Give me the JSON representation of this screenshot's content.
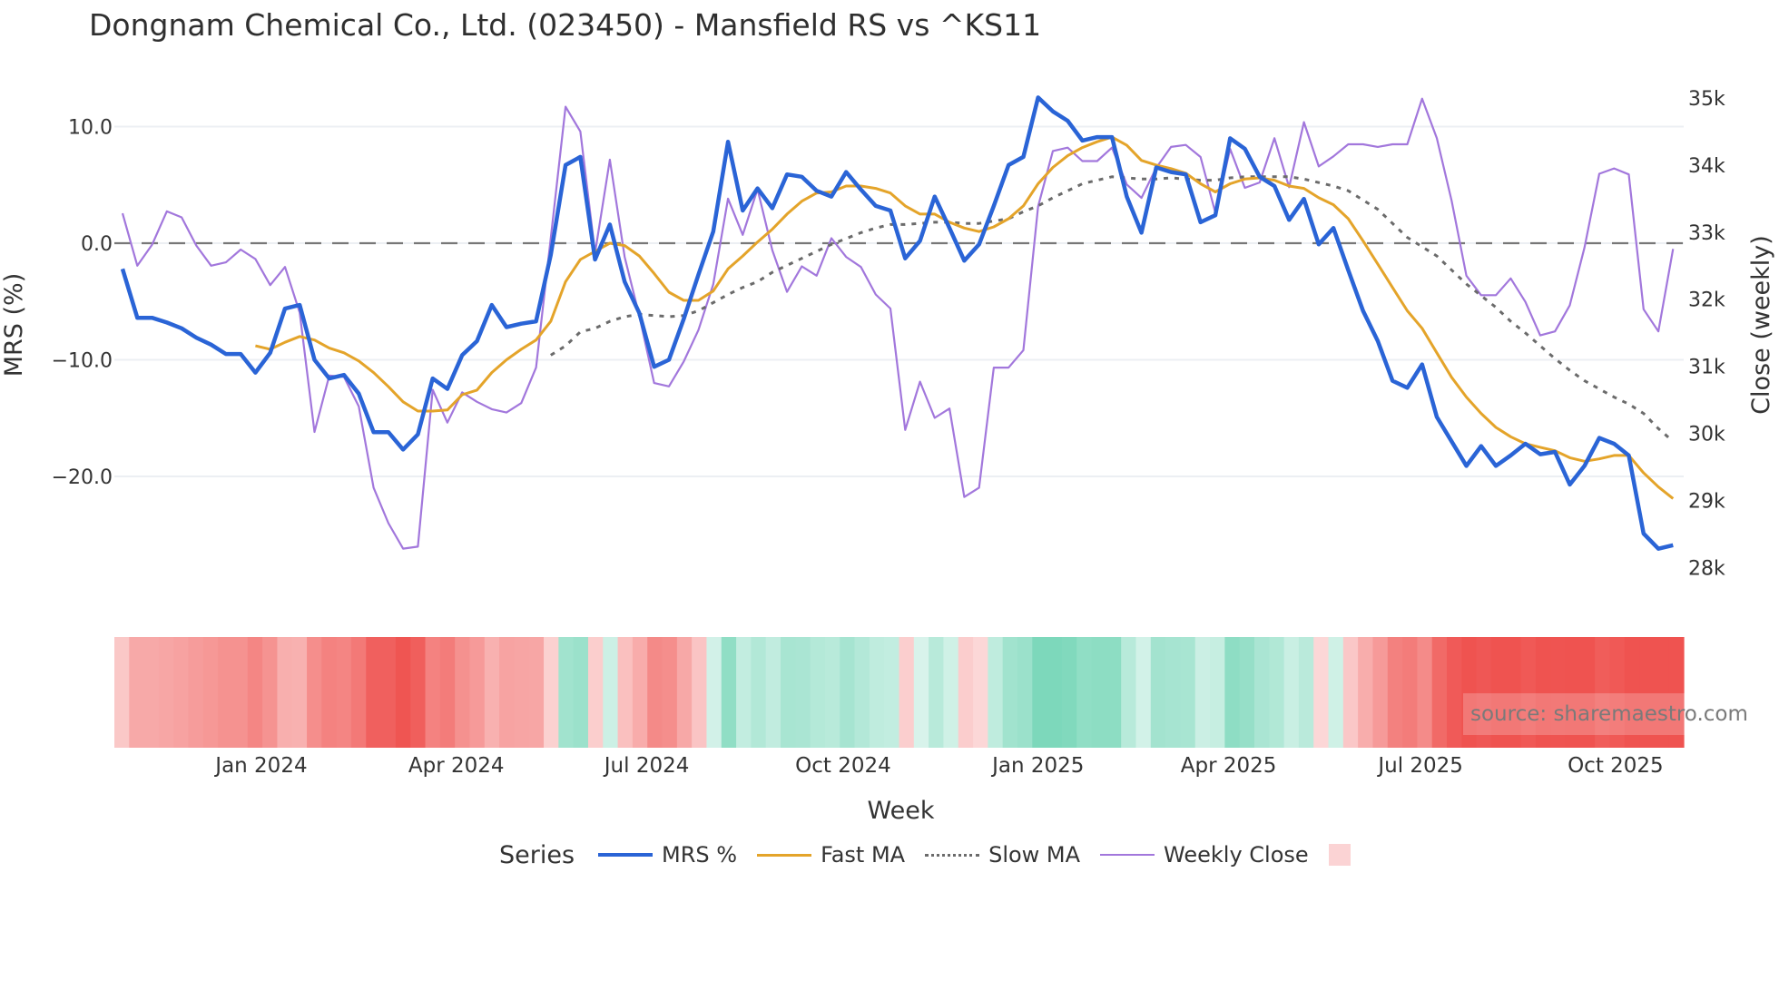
{
  "title": "Dongnam Chemical Co., Ltd. (023450) - Mansfield RS vs ^KS11",
  "source_note": "source: sharemaestro.com",
  "legend": {
    "title": "Series",
    "items": [
      {
        "label": "MRS %",
        "color": "#2a64d6",
        "style": "solid-thick"
      },
      {
        "label": "Fast MA",
        "color": "#e4a42a",
        "style": "solid"
      },
      {
        "label": "Slow MA",
        "color": "#6b6b6b",
        "style": "dotted"
      },
      {
        "label": "Weekly Close",
        "color": "#a277dc",
        "style": "solid-thin"
      },
      {
        "label": "",
        "color": "#fbd3d4",
        "style": "box"
      }
    ]
  },
  "colors": {
    "mrs": "#2a64d6",
    "fast_ma": "#e4a42a",
    "slow_ma": "#6b6b6b",
    "weekly_close": "#a277dc",
    "zero_line": "#777777",
    "grid": "#eceff3",
    "heat_neg": "#ef5350",
    "heat_pos": "#7dd8bb"
  },
  "chart_data": {
    "type": "line",
    "title": "Dongnam Chemical Co., Ltd. (023450) - Mansfield RS vs ^KS11",
    "xlabel": "Week",
    "ylabel": "MRS (%)",
    "y2label": "Close (weekly)",
    "x_tick_labels": [
      "Jan 2024",
      "Apr 2024",
      "Jul 2024",
      "Oct 2024",
      "Jan 2025",
      "Apr 2025",
      "Jul 2025",
      "Oct 2025"
    ],
    "x_tick_index": [
      9.4,
      22.6,
      35.5,
      48.8,
      62.0,
      74.9,
      87.9,
      101.1
    ],
    "y_ticks": [
      10.0,
      0.0,
      -10.0,
      -20.0
    ],
    "y_tick_labels": [
      "10.0",
      "0.0",
      "−10.0",
      "−20.0"
    ],
    "y2_ticks": [
      35,
      34,
      33,
      32,
      31,
      30,
      29,
      28
    ],
    "y2_tick_labels": [
      "35k",
      "34k",
      "33k",
      "32k",
      "31k",
      "30k",
      "29k",
      "28k"
    ],
    "ylim": [
      -30.9,
      15.5
    ],
    "y2lim": [
      27.0,
      35.3
    ],
    "zero_line": 0,
    "grid": true,
    "legend_position": "bottom",
    "n_weeks": 106,
    "series": [
      {
        "name": "MRS %",
        "axis": "y",
        "start_index": 0,
        "values": [
          -2.2,
          -6.4,
          -6.4,
          -6.8,
          -7.3,
          -8.1,
          -8.7,
          -9.5,
          -9.5,
          -11.1,
          -9.4,
          -5.6,
          -5.3,
          -10.0,
          -11.6,
          -11.3,
          -12.9,
          -16.2,
          -16.2,
          -17.7,
          -16.4,
          -11.6,
          -12.5,
          -9.6,
          -8.4,
          -5.3,
          -7.2,
          -6.9,
          -6.7,
          -1.0,
          6.7,
          7.4,
          -1.4,
          1.6,
          -3.3,
          -6.0,
          -10.6,
          -10.0,
          -6.5,
          -2.7,
          1.0,
          8.7,
          2.8,
          4.7,
          3.0,
          5.9,
          5.7,
          4.5,
          4.0,
          6.1,
          4.6,
          3.2,
          2.8,
          -1.3,
          0.2,
          4.0,
          1.3,
          -1.5,
          -0.1,
          3.2,
          6.7,
          7.4,
          12.5,
          11.3,
          10.5,
          8.8,
          9.1,
          9.1,
          4.0,
          0.9,
          6.5,
          6.1,
          5.9,
          1.8,
          2.4,
          9.0,
          8.1,
          5.7,
          4.9,
          2.0,
          3.8,
          -0.1,
          1.3,
          -2.3,
          -5.8,
          -8.4,
          -11.8,
          -12.4,
          -10.4,
          -14.9,
          -17.0,
          -19.1,
          -17.4,
          -19.1,
          -18.2,
          -17.2,
          -18.1,
          -17.9,
          -20.7,
          -19.1,
          -16.7,
          -17.2,
          -18.2,
          -24.9,
          -26.2,
          -25.9
        ]
      },
      {
        "name": "Fast MA",
        "axis": "y",
        "start_index": 9,
        "values": [
          -8.8,
          -9.1,
          -8.5,
          -8.0,
          -8.3,
          -9.0,
          -9.4,
          -10.1,
          -11.1,
          -12.3,
          -13.6,
          -14.4,
          -14.4,
          -14.3,
          -13.0,
          -12.6,
          -11.1,
          -10.0,
          -9.1,
          -8.3,
          -6.7,
          -3.3,
          -1.4,
          -0.7,
          0.0,
          -0.2,
          -1.1,
          -2.6,
          -4.2,
          -4.9,
          -4.9,
          -4.1,
          -2.2,
          -1.1,
          0.1,
          1.2,
          2.5,
          3.6,
          4.3,
          4.4,
          4.9,
          4.9,
          4.7,
          4.3,
          3.2,
          2.5,
          2.5,
          1.8,
          1.3,
          1.0,
          1.4,
          2.1,
          3.2,
          5.1,
          6.5,
          7.5,
          8.2,
          8.7,
          9.1,
          8.4,
          7.1,
          6.7,
          6.4,
          6.0,
          5.1,
          4.4,
          5.1,
          5.5,
          5.6,
          5.4,
          4.9,
          4.7,
          3.9,
          3.3,
          2.1,
          0.2,
          -1.8,
          -3.8,
          -5.8,
          -7.3,
          -9.4,
          -11.5,
          -13.2,
          -14.6,
          -15.8,
          -16.6,
          -17.2,
          -17.5,
          -17.8,
          -18.4,
          -18.7,
          -18.5,
          -18.2,
          -18.2,
          -19.7,
          -20.9,
          -21.9
        ]
      },
      {
        "name": "Slow MA",
        "axis": "y",
        "start_index": 29,
        "values": [
          -9.6,
          -8.8,
          -7.6,
          -7.3,
          -6.7,
          -6.3,
          -6.1,
          -6.2,
          -6.3,
          -6.2,
          -5.8,
          -5.1,
          -4.4,
          -3.8,
          -3.3,
          -2.5,
          -1.9,
          -1.3,
          -0.7,
          -0.1,
          0.4,
          0.9,
          1.3,
          1.6,
          1.6,
          1.7,
          1.8,
          1.8,
          1.7,
          1.7,
          1.9,
          2.1,
          2.7,
          3.2,
          3.9,
          4.5,
          5.1,
          5.4,
          5.7,
          5.6,
          5.5,
          5.5,
          5.6,
          5.5,
          5.4,
          5.4,
          5.6,
          5.7,
          5.7,
          5.7,
          5.7,
          5.5,
          5.2,
          4.9,
          4.5,
          3.7,
          2.9,
          1.7,
          0.5,
          -0.3,
          -1.1,
          -2.3,
          -3.5,
          -4.5,
          -5.5,
          -6.7,
          -7.7,
          -8.8,
          -9.9,
          -10.9,
          -11.8,
          -12.5,
          -13.2,
          -13.8,
          -14.6,
          -15.9,
          -17.0
        ]
      },
      {
        "name": "Weekly Close",
        "axis": "y2",
        "unit": "k",
        "start_index": 0,
        "values": [
          33.28,
          32.5,
          32.81,
          33.31,
          33.22,
          32.8,
          32.5,
          32.55,
          32.74,
          32.6,
          32.21,
          32.48,
          31.8,
          30.02,
          30.86,
          30.84,
          30.4,
          29.19,
          28.66,
          28.28,
          28.31,
          30.65,
          30.16,
          30.61,
          30.47,
          30.36,
          30.31,
          30.45,
          30.98,
          32.91,
          34.87,
          34.5,
          32.69,
          34.08,
          32.63,
          31.75,
          30.75,
          30.7,
          31.07,
          31.54,
          32.22,
          33.5,
          32.96,
          33.64,
          32.73,
          32.11,
          32.49,
          32.35,
          32.91,
          32.63,
          32.48,
          32.07,
          31.86,
          30.05,
          30.77,
          30.23,
          30.37,
          29.05,
          29.19,
          30.98,
          30.98,
          31.24,
          33.38,
          34.21,
          34.26,
          34.06,
          34.06,
          34.26,
          33.71,
          33.51,
          33.96,
          34.27,
          34.3,
          34.12,
          33.29,
          34.24,
          33.66,
          33.74,
          34.4,
          33.67,
          34.64,
          33.98,
          34.13,
          34.31,
          34.31,
          34.27,
          34.31,
          34.31,
          34.99,
          34.4,
          33.47,
          32.35,
          32.06,
          32.06,
          32.31,
          31.96,
          31.46,
          31.52,
          31.91,
          32.77,
          33.87,
          33.95,
          33.86,
          31.85,
          31.52,
          32.75
        ]
      }
    ],
    "heatmap": {
      "type": "heatmap",
      "source_series": "MRS %",
      "description": "Weekly MRS regime strip: red = negative, green = positive"
    }
  }
}
